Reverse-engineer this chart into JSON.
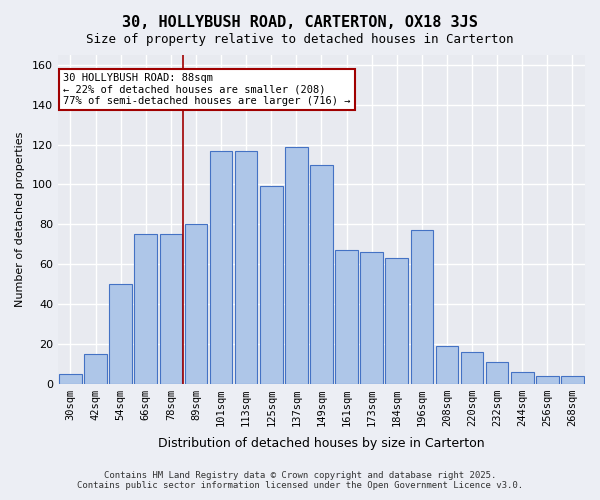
{
  "title": "30, HOLLYBUSH ROAD, CARTERTON, OX18 3JS",
  "subtitle": "Size of property relative to detached houses in Carterton",
  "xlabel": "Distribution of detached houses by size in Carterton",
  "ylabel": "Number of detached properties",
  "categories": [
    "30sqm",
    "42sqm",
    "54sqm",
    "66sqm",
    "78sqm",
    "89sqm",
    "101sqm",
    "113sqm",
    "125sqm",
    "137sqm",
    "149sqm",
    "161sqm",
    "173sqm",
    "184sqm",
    "196sqm",
    "208sqm",
    "220sqm",
    "232sqm",
    "244sqm",
    "256sqm",
    "268sqm"
  ],
  "bar_heights": [
    5,
    15,
    50,
    75,
    75,
    80,
    117,
    117,
    99,
    119,
    110,
    67,
    66,
    63,
    77,
    19,
    16,
    11,
    6,
    4,
    4
  ],
  "bar_color": "#aec6e8",
  "bar_edge_color": "#4472c4",
  "bg_color": "#e8eaf0",
  "grid_color": "#ffffff",
  "vline_color": "#a00000",
  "annotation_title": "30 HOLLYBUSH ROAD: 88sqm",
  "annotation_line1": "← 22% of detached houses are smaller (208)",
  "annotation_line2": "77% of semi-detached houses are larger (716) →",
  "annotation_box_color": "#ffffff",
  "annotation_border_color": "#a00000",
  "footer1": "Contains HM Land Registry data © Crown copyright and database right 2025.",
  "footer2": "Contains public sector information licensed under the Open Government Licence v3.0.",
  "ylim": [
    0,
    165
  ],
  "yticks": [
    0,
    20,
    40,
    60,
    80,
    100,
    120,
    140,
    160
  ]
}
